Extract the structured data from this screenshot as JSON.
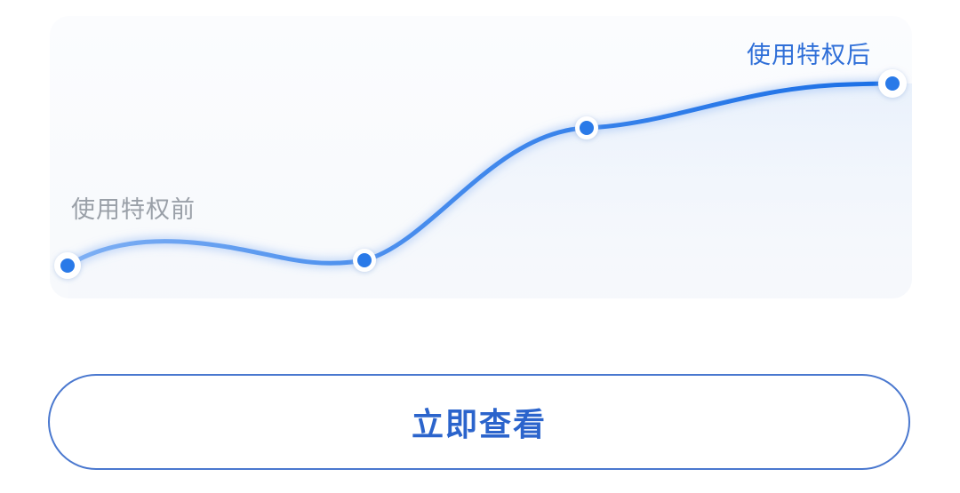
{
  "chart": {
    "label_before": "使用特权前",
    "label_after": "使用特权后",
    "line_color": "#2a7ae8",
    "point_fill": "#2a7ae8",
    "point_ring": "#ffffff"
  },
  "cta": {
    "label": "立即查看",
    "border_color": "#4a78cf",
    "text_color": "#2b64cc"
  }
}
